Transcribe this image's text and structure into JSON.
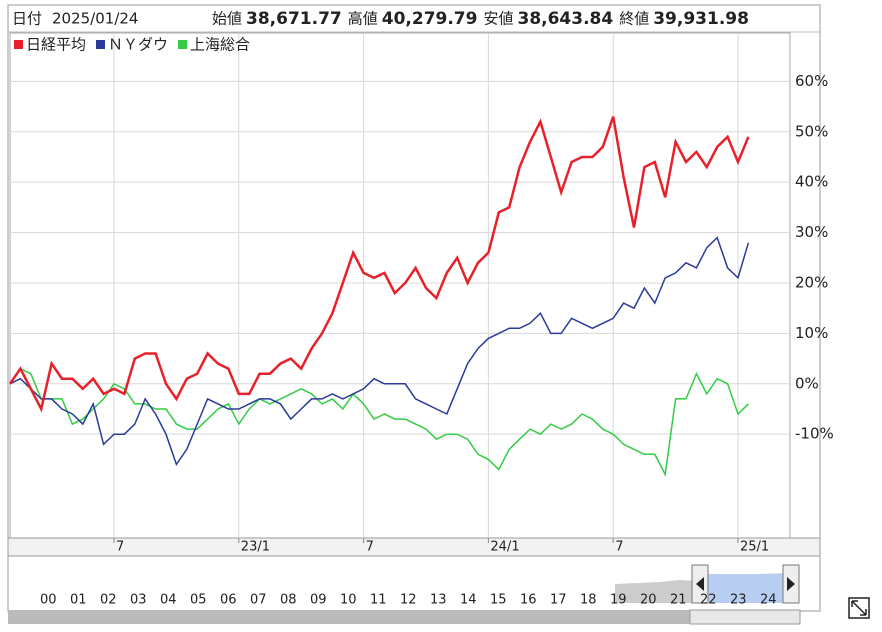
{
  "chart_data": {
    "type": "line",
    "date_label": "日付",
    "date": "2025/01/24",
    "info": [
      {
        "label": "始値",
        "value": "38,671.77",
        "color": "#222222"
      },
      {
        "label": "高値",
        "value": "40,279.79",
        "color": "#e8202a"
      },
      {
        "label": "安値",
        "value": "38,643.84",
        "color": "#1a7a2a"
      },
      {
        "label": "終値",
        "value": "39,931.98",
        "color": "#222222"
      }
    ],
    "x": [
      0,
      0.5,
      1,
      1.5,
      2,
      2.5,
      3,
      3.5,
      4,
      4.5,
      5,
      5.5,
      6,
      6.5,
      7,
      7.5,
      8,
      8.5,
      9,
      9.5,
      10,
      10.5,
      11,
      11.5,
      12,
      12.5,
      13,
      13.5,
      14,
      14.5,
      15,
      15.5,
      16,
      16.5,
      17,
      17.5,
      18,
      18.5,
      19,
      19.5,
      20,
      20.5,
      21,
      21.5,
      22,
      22.5,
      23,
      23.5,
      24,
      24.5,
      25,
      25.5,
      26,
      26.5,
      27,
      27.5,
      28,
      28.5,
      29,
      29.5,
      30,
      30.5,
      31,
      31.5,
      32,
      32.5,
      33,
      33.5,
      34,
      34.5,
      35,
      35.5
    ],
    "series": [
      {
        "name": "日経平均",
        "color": "#e8202a",
        "values": [
          0,
          3,
          -1,
          -5,
          4,
          1,
          1,
          -1,
          1,
          -2,
          -1,
          -2,
          5,
          6,
          6,
          0,
          -3,
          1,
          2,
          6,
          4,
          3,
          -2,
          -2,
          2,
          2,
          4,
          5,
          3,
          7,
          10,
          14,
          20,
          26,
          22,
          21,
          22,
          18,
          20,
          23,
          19,
          17,
          22,
          25,
          20,
          24,
          26,
          34,
          35,
          43,
          48,
          52,
          45,
          38,
          44,
          45,
          45,
          47,
          53,
          41,
          31,
          43,
          44,
          37,
          48,
          44,
          46,
          43,
          47,
          49,
          44,
          49
        ]
      },
      {
        "name": "ＮＹダウ",
        "color": "#2a3a9a",
        "values": [
          0,
          1,
          -1,
          -3,
          -3,
          -5,
          -6,
          -8,
          -4,
          -12,
          -10,
          -10,
          -8,
          -3,
          -6,
          -10,
          -16,
          -13,
          -8,
          -3,
          -4,
          -5,
          -5,
          -4,
          -3,
          -3,
          -4,
          -7,
          -5,
          -3,
          -3,
          -2,
          -3,
          -2,
          -1,
          1,
          0,
          0,
          0,
          -3,
          -4,
          -5,
          -6,
          -1,
          4,
          7,
          9,
          10,
          11,
          11,
          12,
          14,
          10,
          10,
          13,
          12,
          11,
          12,
          13,
          16,
          15,
          19,
          16,
          21,
          22,
          24,
          23,
          27,
          29,
          23,
          21,
          28
        ]
      },
      {
        "name": "上海総合",
        "color": "#33cc44",
        "values": [
          0,
          3,
          2,
          -3,
          -3,
          -3,
          -8,
          -7,
          -5,
          -3,
          0,
          -1,
          -4,
          -4,
          -5,
          -5,
          -8,
          -9,
          -9,
          -7,
          -5,
          -4,
          -8,
          -5,
          -3,
          -4,
          -3,
          -2,
          -1,
          -2,
          -4,
          -3,
          -5,
          -2,
          -4,
          -7,
          -6,
          -7,
          -7,
          -8,
          -9,
          -11,
          -10,
          -10,
          -11,
          -14,
          -15,
          -17,
          -13,
          -11,
          -9,
          -10,
          -8,
          -9,
          -8,
          -6,
          -7,
          -9,
          -10,
          -12,
          -13,
          -14,
          -14,
          -18,
          -3,
          -3,
          2,
          -2,
          1,
          0,
          -6,
          -4
        ]
      }
    ],
    "xlim": [
      0,
      37.5
    ],
    "xticks": [
      {
        "value": 5,
        "label": "7"
      },
      {
        "value": 11,
        "label": "23/1"
      },
      {
        "value": 17,
        "label": "7"
      },
      {
        "value": 23,
        "label": "24/1"
      },
      {
        "value": 29,
        "label": "7"
      },
      {
        "value": 35,
        "label": "25/1"
      }
    ],
    "ylim": [
      -30.6,
      69.6
    ],
    "yticks": [
      {
        "value": 60,
        "label": "60%"
      },
      {
        "value": 50,
        "label": "50%"
      },
      {
        "value": 40,
        "label": "40%"
      },
      {
        "value": 30,
        "label": "30%"
      },
      {
        "value": 20,
        "label": "20%"
      },
      {
        "value": 10,
        "label": "10%"
      },
      {
        "value": 0,
        "label": "0%"
      },
      {
        "value": -10,
        "label": "-10%"
      }
    ],
    "grid": true,
    "navigator_labels": [
      "00",
      "01",
      "02",
      "03",
      "04",
      "05",
      "06",
      "07",
      "08",
      "09",
      "10",
      "11",
      "12",
      "13",
      "14",
      "15",
      "16",
      "17",
      "18",
      "19",
      "20",
      "21",
      "22",
      "23",
      "24"
    ]
  }
}
